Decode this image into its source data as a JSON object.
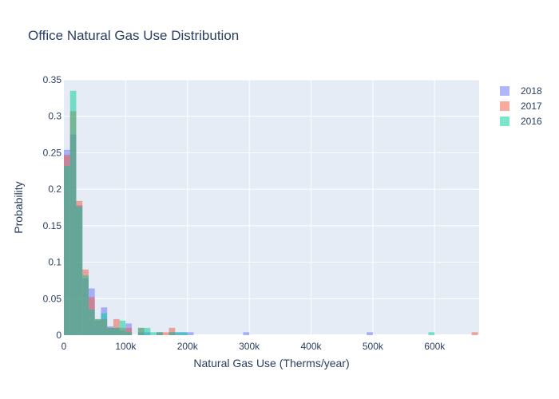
{
  "chart_data": {
    "type": "bar",
    "subtype": "overlaid-histogram",
    "title": "Office Natural Gas Use Distribution",
    "xlabel": "Natural Gas Use (Therms/year)",
    "ylabel": "Probability",
    "xlim": [
      0,
      672000
    ],
    "ylim": [
      0,
      0.35
    ],
    "grid": true,
    "legend_position": "top-right",
    "bin_width": 10000,
    "x_ticks": [
      {
        "value": 0,
        "label": "0"
      },
      {
        "value": 100000,
        "label": "100k"
      },
      {
        "value": 200000,
        "label": "200k"
      },
      {
        "value": 300000,
        "label": "300k"
      },
      {
        "value": 400000,
        "label": "400k"
      },
      {
        "value": 500000,
        "label": "500k"
      },
      {
        "value": 600000,
        "label": "600k"
      }
    ],
    "y_ticks": [
      {
        "value": 0,
        "label": "0"
      },
      {
        "value": 0.05,
        "label": "0.05"
      },
      {
        "value": 0.1,
        "label": "0.1"
      },
      {
        "value": 0.15,
        "label": "0.15"
      },
      {
        "value": 0.2,
        "label": "0.2"
      },
      {
        "value": 0.25,
        "label": "0.25"
      },
      {
        "value": 0.3,
        "label": "0.3"
      },
      {
        "value": 0.35,
        "label": "0.35"
      }
    ],
    "series": [
      {
        "name": "2018",
        "color": "#636efa",
        "bins": [
          {
            "x0": 0,
            "x1": 10000,
            "y": 0.254
          },
          {
            "x0": 10000,
            "x1": 20000,
            "y": 0.275
          },
          {
            "x0": 20000,
            "x1": 30000,
            "y": 0.178
          },
          {
            "x0": 30000,
            "x1": 40000,
            "y": 0.078
          },
          {
            "x0": 40000,
            "x1": 50000,
            "y": 0.064
          },
          {
            "x0": 50000,
            "x1": 60000,
            "y": 0.02
          },
          {
            "x0": 60000,
            "x1": 70000,
            "y": 0.038
          },
          {
            "x0": 70000,
            "x1": 80000,
            "y": 0.012
          },
          {
            "x0": 80000,
            "x1": 90000,
            "y": 0.01
          },
          {
            "x0": 90000,
            "x1": 100000,
            "y": 0.006
          },
          {
            "x0": 100000,
            "x1": 110000,
            "y": 0.016
          },
          {
            "x0": 120000,
            "x1": 130000,
            "y": 0.004
          },
          {
            "x0": 130000,
            "x1": 140000,
            "y": 0.004
          },
          {
            "x0": 150000,
            "x1": 160000,
            "y": 0.004
          },
          {
            "x0": 170000,
            "x1": 180000,
            "y": 0.004
          },
          {
            "x0": 180000,
            "x1": 190000,
            "y": 0.004
          },
          {
            "x0": 190000,
            "x1": 200000,
            "y": 0.004
          },
          {
            "x0": 200000,
            "x1": 210000,
            "y": 0.004
          },
          {
            "x0": 290000,
            "x1": 300000,
            "y": 0.004
          },
          {
            "x0": 490000,
            "x1": 500000,
            "y": 0.004
          }
        ]
      },
      {
        "name": "2017",
        "color": "#ef553b",
        "bins": [
          {
            "x0": 0,
            "x1": 10000,
            "y": 0.247
          },
          {
            "x0": 10000,
            "x1": 20000,
            "y": 0.307
          },
          {
            "x0": 20000,
            "x1": 30000,
            "y": 0.184
          },
          {
            "x0": 30000,
            "x1": 40000,
            "y": 0.09
          },
          {
            "x0": 40000,
            "x1": 50000,
            "y": 0.052
          },
          {
            "x0": 50000,
            "x1": 60000,
            "y": 0.022
          },
          {
            "x0": 60000,
            "x1": 70000,
            "y": 0.022
          },
          {
            "x0": 70000,
            "x1": 80000,
            "y": 0.01
          },
          {
            "x0": 80000,
            "x1": 90000,
            "y": 0.022
          },
          {
            "x0": 90000,
            "x1": 100000,
            "y": 0.01
          },
          {
            "x0": 100000,
            "x1": 110000,
            "y": 0.01
          },
          {
            "x0": 120000,
            "x1": 130000,
            "y": 0.01
          },
          {
            "x0": 150000,
            "x1": 160000,
            "y": 0.004
          },
          {
            "x0": 160000,
            "x1": 170000,
            "y": 0.004
          },
          {
            "x0": 170000,
            "x1": 180000,
            "y": 0.01
          },
          {
            "x0": 660000,
            "x1": 670000,
            "y": 0.004
          }
        ]
      },
      {
        "name": "2016",
        "color": "#00cc96",
        "bins": [
          {
            "x0": 0,
            "x1": 10000,
            "y": 0.232
          },
          {
            "x0": 10000,
            "x1": 20000,
            "y": 0.335
          },
          {
            "x0": 20000,
            "x1": 30000,
            "y": 0.176
          },
          {
            "x0": 30000,
            "x1": 40000,
            "y": 0.082
          },
          {
            "x0": 40000,
            "x1": 50000,
            "y": 0.035
          },
          {
            "x0": 50000,
            "x1": 60000,
            "y": 0.022
          },
          {
            "x0": 60000,
            "x1": 70000,
            "y": 0.03
          },
          {
            "x0": 70000,
            "x1": 80000,
            "y": 0.01
          },
          {
            "x0": 80000,
            "x1": 90000,
            "y": 0.01
          },
          {
            "x0": 90000,
            "x1": 100000,
            "y": 0.02
          },
          {
            "x0": 100000,
            "x1": 110000,
            "y": 0.004
          },
          {
            "x0": 120000,
            "x1": 130000,
            "y": 0.01
          },
          {
            "x0": 130000,
            "x1": 140000,
            "y": 0.01
          },
          {
            "x0": 140000,
            "x1": 150000,
            "y": 0.004
          },
          {
            "x0": 150000,
            "x1": 160000,
            "y": 0.004
          },
          {
            "x0": 170000,
            "x1": 180000,
            "y": 0.004
          },
          {
            "x0": 180000,
            "x1": 190000,
            "y": 0.004
          },
          {
            "x0": 190000,
            "x1": 200000,
            "y": 0.004
          },
          {
            "x0": 590000,
            "x1": 600000,
            "y": 0.004
          }
        ]
      }
    ]
  }
}
